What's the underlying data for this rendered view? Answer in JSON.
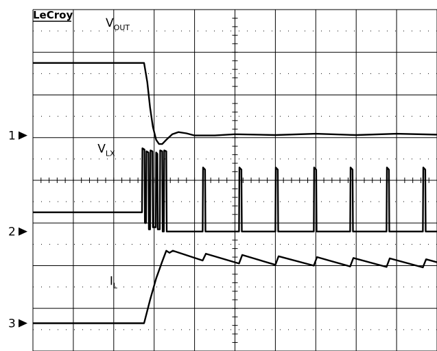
{
  "brand": "LeCroy",
  "chart_data": {
    "type": "line",
    "title": "",
    "grid": true,
    "divisions": {
      "x": 10,
      "y": 8
    },
    "x_range_div": [
      0,
      10
    ],
    "y_range_div": [
      0,
      8
    ],
    "series": [
      {
        "name": "VOUT",
        "label_main": "V",
        "label_sub": "OUT",
        "channel_marker": "1",
        "ground_level_div": 5.05,
        "label_pos_div": [
          1.8,
          7.6
        ],
        "x": [
          0,
          2.75,
          2.83,
          2.9,
          2.97,
          3.05,
          3.12,
          3.2,
          3.3,
          3.45,
          3.6,
          3.8,
          4.0,
          4.5,
          5.0,
          6.0,
          7.0,
          8.0,
          9.0,
          10.0
        ],
        "y": [
          6.75,
          6.75,
          6.3,
          5.7,
          5.25,
          4.95,
          4.85,
          4.85,
          4.95,
          5.08,
          5.13,
          5.1,
          5.05,
          5.05,
          5.08,
          5.06,
          5.09,
          5.06,
          5.09,
          5.07
        ]
      },
      {
        "name": "VLX",
        "label_main": "V",
        "label_sub": "LX",
        "channel_marker": "2",
        "ground_level_div": 2.8,
        "label_pos_div": [
          1.6,
          4.65
        ],
        "x": [
          0,
          2.7,
          2.71,
          2.76,
          2.77,
          2.8,
          2.81,
          2.86,
          2.87,
          2.9,
          2.91,
          2.96,
          2.97,
          3.04,
          3.05,
          3.08,
          3.09,
          3.14,
          3.15,
          3.2,
          3.21,
          3.24,
          3.25,
          3.3,
          3.31,
          4.2,
          4.21,
          4.26,
          4.27,
          5.1,
          5.11,
          5.16,
          5.17,
          6.0,
          6.01,
          6.06,
          6.07,
          6.95,
          6.96,
          7.01,
          7.02,
          7.85,
          7.86,
          7.91,
          7.92,
          8.75,
          8.76,
          8.81,
          8.82,
          9.65,
          9.66,
          9.71,
          9.72,
          10.0
        ],
        "y": [
          3.25,
          3.25,
          4.75,
          4.72,
          3.0,
          3.0,
          4.68,
          4.65,
          2.85,
          2.85,
          4.7,
          4.68,
          2.9,
          2.9,
          4.65,
          4.62,
          2.85,
          2.85,
          4.7,
          4.68,
          2.8,
          2.8,
          4.7,
          4.68,
          2.8,
          2.8,
          4.3,
          4.25,
          2.8,
          2.8,
          4.3,
          4.25,
          2.8,
          2.8,
          4.3,
          4.25,
          2.8,
          2.8,
          4.3,
          4.25,
          2.8,
          2.8,
          4.3,
          4.25,
          2.8,
          2.8,
          4.3,
          4.25,
          2.8,
          2.8,
          4.3,
          4.25,
          2.8,
          2.8
        ]
      },
      {
        "name": "IL",
        "label_main": "I",
        "label_sub": "L",
        "channel_marker": "3",
        "ground_level_div": 0.65,
        "label_pos_div": [
          1.9,
          1.55
        ],
        "x": [
          0,
          2.75,
          2.9,
          3.05,
          3.2,
          3.3,
          3.38,
          3.46,
          4.2,
          4.28,
          5.1,
          5.18,
          6.0,
          6.08,
          6.95,
          7.03,
          7.85,
          7.93,
          8.75,
          8.83,
          9.65,
          9.73,
          10.0
        ],
        "y": [
          0.65,
          0.65,
          1.2,
          1.7,
          2.1,
          2.35,
          2.3,
          2.35,
          2.12,
          2.28,
          2.05,
          2.25,
          2.02,
          2.22,
          2.0,
          2.2,
          1.98,
          2.18,
          1.97,
          2.17,
          1.96,
          2.15,
          2.08
        ]
      }
    ]
  }
}
